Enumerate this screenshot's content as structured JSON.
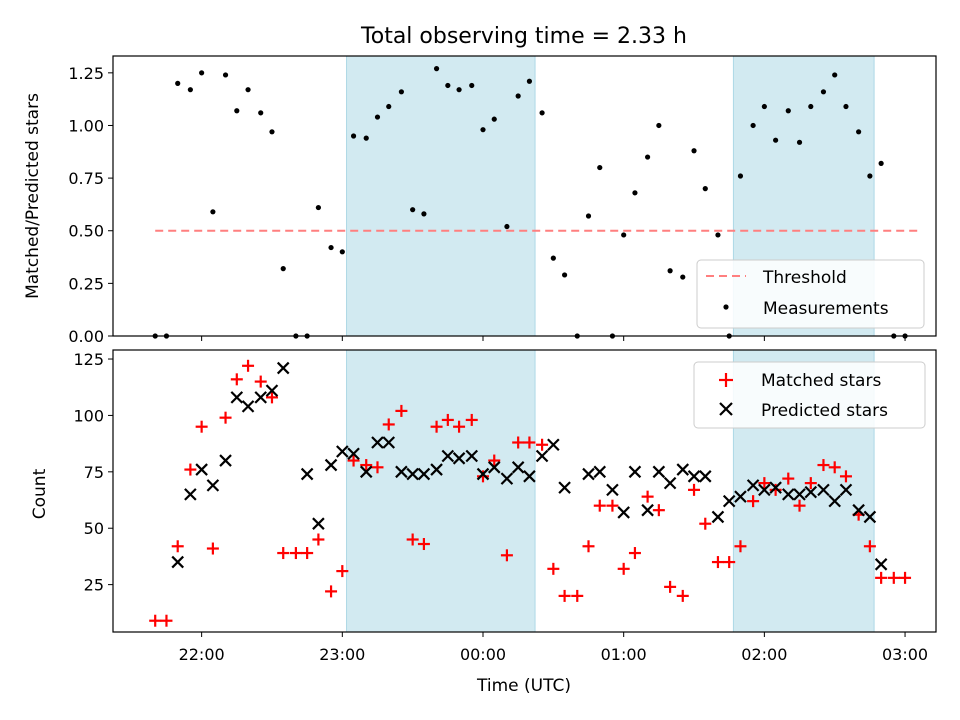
{
  "figure": {
    "title": "Total observing time = 2.33 h",
    "xlabel": "Time (UTC)",
    "x_ticks": [
      "22:00",
      "23:00",
      "00:00",
      "01:00",
      "02:00",
      "03:00"
    ],
    "x_tick_hours": [
      22,
      23,
      24,
      25,
      26,
      27
    ],
    "x_range_hours": [
      21.37,
      27.22
    ],
    "shaded_intervals_hours": [
      [
        23.03,
        24.37
      ],
      [
        25.78,
        26.78
      ]
    ],
    "colors": {
      "shade": "#add8e6",
      "threshold": "#ff7f7f",
      "measurements": "#000000",
      "matched": "#ff0000",
      "predicted": "#000000"
    }
  },
  "chart_data": [
    {
      "type": "scatter",
      "ylabel": "Matched/Predicted stars",
      "ylim": [
        0,
        1.33
      ],
      "y_ticks": [
        "0.00",
        "0.25",
        "0.50",
        "0.75",
        "1.00",
        "1.25"
      ],
      "y_tick_values": [
        0,
        0.25,
        0.5,
        0.75,
        1.0,
        1.25
      ],
      "legend_position": "lower-right",
      "threshold": {
        "name": "Threshold",
        "value": 0.5,
        "x_from_hours": 21.67,
        "x_to_hours": 27.12
      },
      "series": [
        {
          "name": "Measurements",
          "x_hours": [
            21.67,
            21.75,
            21.83,
            21.92,
            22.0,
            22.08,
            22.17,
            22.25,
            22.33,
            22.42,
            22.5,
            22.58,
            22.67,
            22.75,
            22.83,
            22.92,
            23.0,
            23.08,
            23.17,
            23.25,
            23.33,
            23.42,
            23.5,
            23.58,
            23.67,
            23.75,
            23.83,
            23.92,
            24.0,
            24.08,
            24.17,
            24.25,
            24.33,
            24.42,
            24.5,
            24.58,
            24.67,
            24.75,
            24.83,
            24.92,
            25.0,
            25.08,
            25.17,
            25.25,
            25.33,
            25.42,
            25.5,
            25.58,
            25.67,
            25.75,
            25.83,
            25.92,
            26.0,
            26.08,
            26.17,
            26.25,
            26.33,
            26.42,
            26.5,
            26.58,
            26.67,
            26.75,
            26.83,
            26.92,
            27.0
          ],
          "y": [
            0,
            0,
            1.2,
            1.17,
            1.25,
            0.59,
            1.24,
            1.07,
            1.17,
            1.06,
            0.97,
            0.32,
            0,
            0,
            0.61,
            0.42,
            0.4,
            0.95,
            0.94,
            1.04,
            1.09,
            1.16,
            0.6,
            0.58,
            1.27,
            1.19,
            1.17,
            1.19,
            0.98,
            1.03,
            0.52,
            1.14,
            1.21,
            1.06,
            0.37,
            0.29,
            0,
            0.57,
            0.8,
            0,
            0.48,
            0.68,
            0.85,
            1.0,
            0.31,
            0.28,
            0.88,
            0.7,
            0.48,
            0,
            0.76,
            1.0,
            1.09,
            0.93,
            1.07,
            0.92,
            1.09,
            1.16,
            1.24,
            1.09,
            0.97,
            0.76,
            0.82,
            0,
            0
          ]
        }
      ]
    },
    {
      "type": "scatter",
      "ylabel": "Count",
      "ylim": [
        4,
        129
      ],
      "y_ticks": [
        "25",
        "50",
        "75",
        "100",
        "125"
      ],
      "y_tick_values": [
        25,
        50,
        75,
        100,
        125
      ],
      "legend_position": "upper-right",
      "series": [
        {
          "name": "Matched stars",
          "marker": "+",
          "x_hours": [
            21.67,
            21.75,
            21.83,
            21.92,
            22.0,
            22.08,
            22.17,
            22.25,
            22.33,
            22.42,
            22.5,
            22.58,
            22.67,
            22.75,
            22.83,
            22.92,
            23.0,
            23.08,
            23.17,
            23.25,
            23.33,
            23.42,
            23.5,
            23.58,
            23.67,
            23.75,
            23.83,
            23.92,
            24.0,
            24.08,
            24.17,
            24.25,
            24.33,
            24.42,
            24.5,
            24.58,
            24.67,
            24.75,
            24.83,
            24.92,
            25.0,
            25.08,
            25.17,
            25.25,
            25.33,
            25.42,
            25.5,
            25.58,
            25.67,
            25.75,
            25.83,
            25.92,
            26.0,
            26.08,
            26.17,
            26.25,
            26.33,
            26.42,
            26.5,
            26.58,
            26.67,
            26.75,
            26.83,
            26.92,
            27.0
          ],
          "y": [
            9,
            9,
            42,
            76,
            95,
            41,
            99,
            116,
            122,
            115,
            108,
            39,
            39,
            39,
            45,
            22,
            31,
            80,
            78,
            77,
            96,
            102,
            45,
            43,
            95,
            98,
            95,
            98,
            73,
            80,
            38,
            88,
            88,
            87,
            32,
            20,
            20,
            42,
            60,
            60,
            32,
            39,
            64,
            58,
            24,
            20,
            67,
            52,
            35,
            35,
            42,
            62,
            70,
            67,
            72,
            60,
            70,
            78,
            77,
            73,
            56,
            42,
            28,
            28,
            28
          ]
        },
        {
          "name": "Predicted stars",
          "marker": "x",
          "x_hours": [
            21.83,
            21.92,
            22.0,
            22.08,
            22.17,
            22.25,
            22.33,
            22.42,
            22.5,
            22.58,
            22.75,
            22.83,
            22.92,
            23.0,
            23.08,
            23.17,
            23.25,
            23.33,
            23.42,
            23.5,
            23.58,
            23.67,
            23.75,
            23.83,
            23.92,
            24.0,
            24.08,
            24.17,
            24.25,
            24.33,
            24.42,
            24.5,
            24.58,
            24.75,
            24.83,
            24.92,
            25.0,
            25.08,
            25.17,
            25.25,
            25.33,
            25.42,
            25.5,
            25.58,
            25.67,
            25.75,
            25.83,
            25.92,
            26.0,
            26.08,
            26.17,
            26.25,
            26.33,
            26.42,
            26.5,
            26.58,
            26.67,
            26.75,
            26.83
          ],
          "y": [
            35,
            65,
            76,
            69,
            80,
            108,
            104,
            108,
            111,
            121,
            74,
            52,
            78,
            84,
            83,
            75,
            88,
            88,
            75,
            74,
            74,
            76,
            82,
            81,
            82,
            74,
            77,
            72,
            77,
            73,
            82,
            87,
            68,
            74,
            75,
            67,
            57,
            75,
            58,
            75,
            70,
            76,
            73,
            73,
            55,
            62,
            64,
            69,
            67,
            68,
            65,
            65,
            66,
            67,
            62,
            67,
            58,
            55,
            34
          ]
        }
      ]
    }
  ]
}
